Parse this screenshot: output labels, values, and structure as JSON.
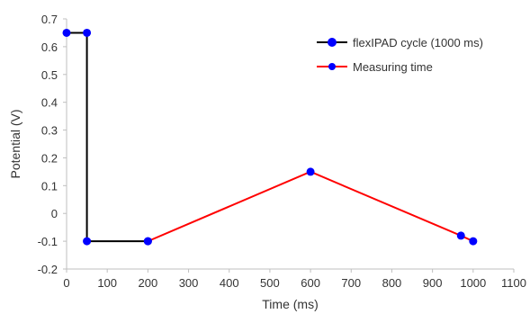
{
  "chart_data": {
    "type": "line",
    "xlabel": "Time (ms)",
    "ylabel": "Potential (V)",
    "xlim": [
      0,
      1100
    ],
    "ylim": [
      -0.2,
      0.7
    ],
    "x_ticks": [
      "0",
      "100",
      "200",
      "300",
      "400",
      "500",
      "600",
      "700",
      "800",
      "900",
      "1000",
      "1100"
    ],
    "y_ticks": [
      "-0.2",
      "-0.1",
      "0",
      "0.1",
      "0.2",
      "0.3",
      "0.4",
      "0.5",
      "0.6",
      "0.7"
    ],
    "grid": false,
    "legend_position": "top-right",
    "series": [
      {
        "name": "flexIPAD cycle (1000 ms)",
        "color": "#000000",
        "marker_color": "#0000ff",
        "points": [
          {
            "x": 0,
            "y": 0.65
          },
          {
            "x": 50,
            "y": 0.65
          },
          {
            "x": 50,
            "y": -0.1
          },
          {
            "x": 200,
            "y": -0.1
          }
        ]
      },
      {
        "name": "Measuring time",
        "color": "#ff0000",
        "marker_color": "#0000ff",
        "points": [
          {
            "x": 200,
            "y": -0.1
          },
          {
            "x": 600,
            "y": 0.15
          },
          {
            "x": 970,
            "y": -0.08
          },
          {
            "x": 1000,
            "y": -0.1
          }
        ]
      }
    ]
  }
}
